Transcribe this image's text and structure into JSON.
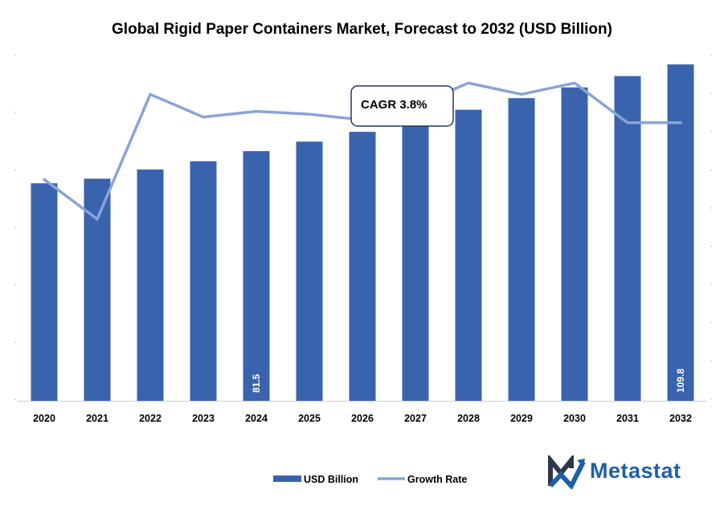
{
  "colors": {
    "bar": "#3a63ad",
    "line": "#8aa3d8",
    "axis": "#d0d0d0",
    "text": "#000000",
    "callout_border": "#203864",
    "logo_dark": "#2d3748",
    "logo_blue": "#1f5fa8"
  },
  "brand": {
    "name": "Metastat",
    "logo_icon": "metastat-m-arrow-icon"
  },
  "callout": {
    "text": "CAGR 3.8%"
  },
  "chart_data": {
    "type": "bar",
    "title": "Global Rigid Paper Containers Market, Forecast to 2032 (USD Billion)",
    "categories": [
      "2020",
      "2021",
      "2022",
      "2023",
      "2024",
      "2025",
      "2026",
      "2027",
      "2028",
      "2029",
      "2030",
      "2031",
      "2032"
    ],
    "series": [
      {
        "name": "USD Billion",
        "type": "bar",
        "values": [
          71.0,
          72.5,
          75.5,
          78.2,
          81.5,
          84.6,
          87.8,
          91.0,
          95.0,
          98.8,
          102.3,
          106.0,
          109.8
        ],
        "data_labels": [
          null,
          null,
          null,
          null,
          "81.5",
          null,
          null,
          null,
          null,
          null,
          null,
          null,
          "109.8"
        ]
      },
      {
        "name": "Growth Rate",
        "type": "line",
        "values": [
          2.4,
          1.7,
          3.9,
          3.5,
          3.6,
          3.55,
          3.45,
          3.7,
          4.1,
          3.9,
          4.1,
          3.4,
          3.4
        ]
      }
    ],
    "ylim": [
      0,
      113
    ],
    "y2lim": [
      -1.5,
      4.6
    ],
    "legend_position": "bottom-center",
    "grid": false
  }
}
